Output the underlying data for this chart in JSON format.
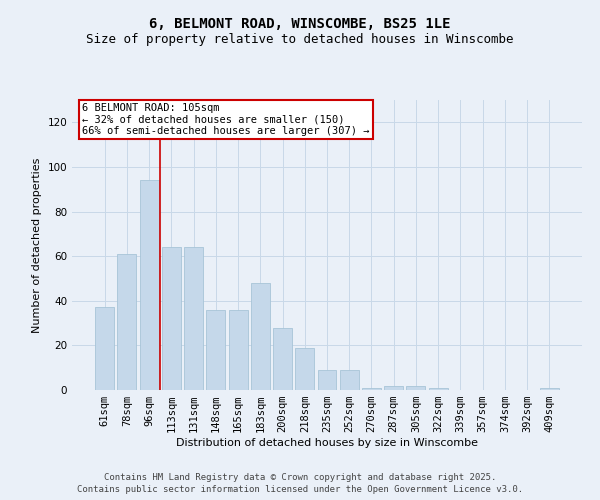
{
  "title_line1": "6, BELMONT ROAD, WINSCOMBE, BS25 1LE",
  "title_line2": "Size of property relative to detached houses in Winscombe",
  "xlabel": "Distribution of detached houses by size in Winscombe",
  "ylabel": "Number of detached properties",
  "categories": [
    "61sqm",
    "78sqm",
    "96sqm",
    "113sqm",
    "131sqm",
    "148sqm",
    "165sqm",
    "183sqm",
    "200sqm",
    "218sqm",
    "235sqm",
    "252sqm",
    "270sqm",
    "287sqm",
    "305sqm",
    "322sqm",
    "339sqm",
    "357sqm",
    "374sqm",
    "392sqm",
    "409sqm"
  ],
  "values": [
    37,
    61,
    94,
    64,
    64,
    36,
    36,
    48,
    28,
    19,
    9,
    9,
    1,
    2,
    2,
    1,
    0,
    0,
    0,
    0,
    1
  ],
  "bar_color": "#c5d8ea",
  "bar_edge_color": "#a8c4d8",
  "grid_color": "#c8d8e8",
  "background_color": "#eaf0f8",
  "vline_color": "#cc0000",
  "vline_pos": 2.5,
  "annotation_text": "6 BELMONT ROAD: 105sqm\n← 32% of detached houses are smaller (150)\n66% of semi-detached houses are larger (307) →",
  "annotation_box_facecolor": "#ffffff",
  "annotation_box_edgecolor": "#cc0000",
  "ylim": [
    0,
    130
  ],
  "yticks": [
    0,
    20,
    40,
    60,
    80,
    100,
    120
  ],
  "footer_line1": "Contains HM Land Registry data © Crown copyright and database right 2025.",
  "footer_line2": "Contains public sector information licensed under the Open Government Licence v3.0.",
  "title_fontsize": 10,
  "subtitle_fontsize": 9,
  "axis_label_fontsize": 8,
  "tick_fontsize": 7.5,
  "annotation_fontsize": 7.5,
  "footer_fontsize": 6.5
}
